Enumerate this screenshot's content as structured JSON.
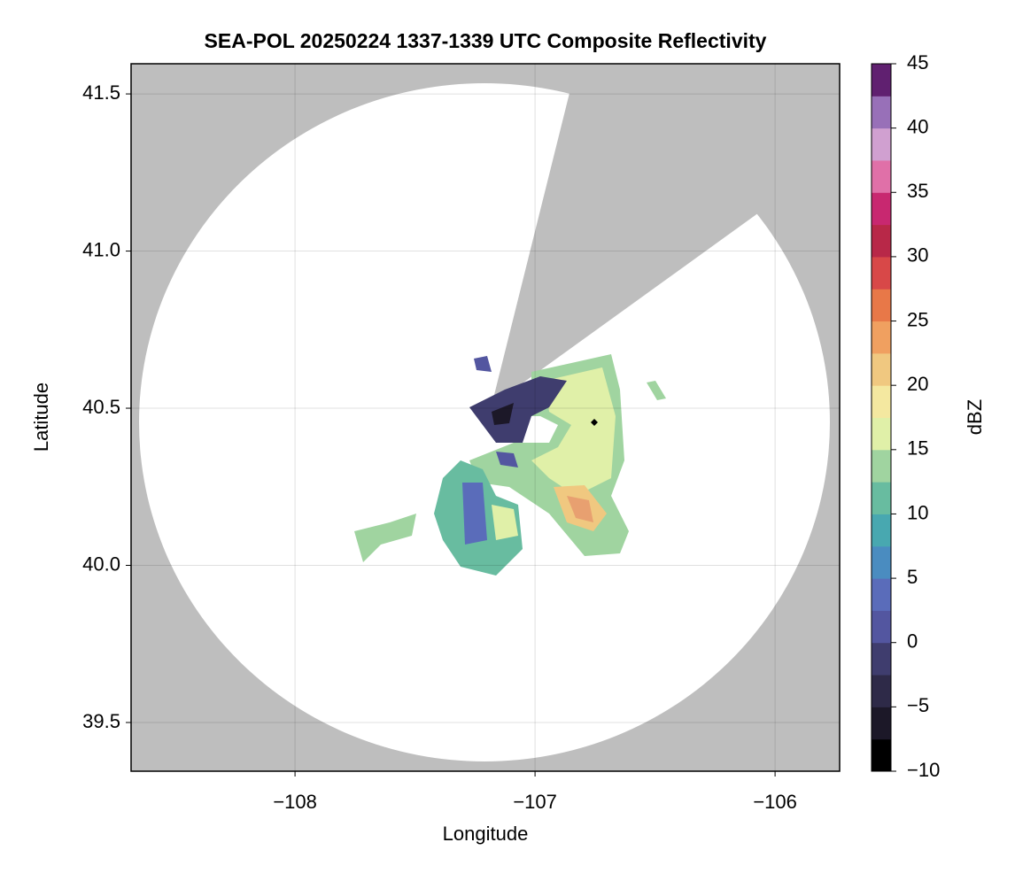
{
  "chart_data": {
    "type": "radar-map",
    "title": "SEA-POL 20250224 1337-1339 UTC Composite Reflectivity",
    "xlabel": "Longitude",
    "ylabel": "Latitude",
    "xlim": [
      -108.683,
      -105.731
    ],
    "ylim": [
      39.345,
      41.596
    ],
    "xticks": [
      {
        "value": -108,
        "label": "−108"
      },
      {
        "value": -107,
        "label": "−107"
      },
      {
        "value": -106,
        "label": "−106"
      }
    ],
    "yticks": [
      {
        "value": 39.5,
        "label": "39.5"
      },
      {
        "value": 40.0,
        "label": "40.0"
      },
      {
        "value": 40.5,
        "label": "40.5"
      },
      {
        "value": 41.0,
        "label": "41.0"
      },
      {
        "value": 41.5,
        "label": "41.5"
      }
    ],
    "grid": true,
    "colorbar": {
      "label": "dBZ",
      "lim": [
        -10,
        45
      ],
      "ticks": [
        {
          "value": -10,
          "label": "−10"
        },
        {
          "value": -5,
          "label": "−5"
        },
        0,
        5,
        10,
        15,
        20,
        25,
        30,
        35,
        40,
        45
      ],
      "colors": [
        "#000000",
        "#1c1828",
        "#2e2a48",
        "#3f3d6e",
        "#5356a0",
        "#5a6cba",
        "#4a8cc0",
        "#48a8b0",
        "#68bca0",
        "#a0d4a0",
        "#e0f0a8",
        "#f4e8a0",
        "#f0c880",
        "#f0a060",
        "#e87848",
        "#d84848",
        "#b82848",
        "#c82870",
        "#e070a8",
        "#d0a0d0",
        "#9870b8",
        "#602070"
      ]
    }
  }
}
